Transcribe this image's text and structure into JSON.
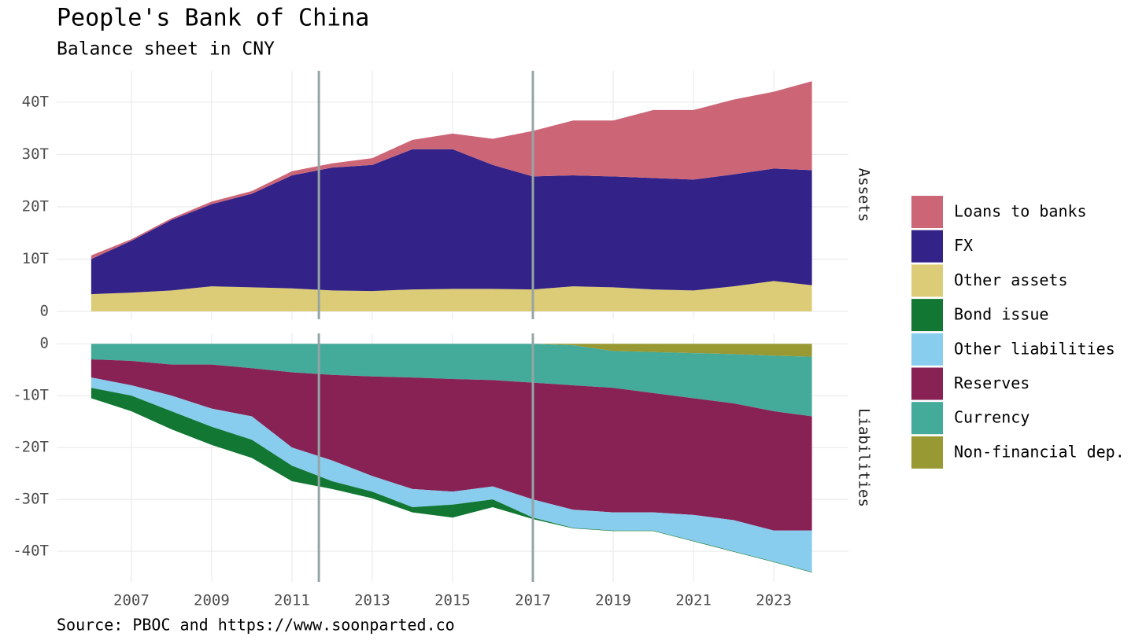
{
  "title": "People's Bank of China",
  "subtitle": "Balance sheet in CNY",
  "source": "Source: PBOC and https://www.soonparted.co",
  "chart_data": [
    {
      "type": "area",
      "facet": "Assets",
      "stacked": true,
      "x": [
        2006,
        2007,
        2008,
        2009,
        2010,
        2011,
        2012,
        2013,
        2014,
        2015,
        2016,
        2017,
        2018,
        2019,
        2020,
        2021,
        2022,
        2023,
        2023.95
      ],
      "xlim": [
        2005.14,
        2024.86
      ],
      "xticks": [
        2007,
        2009,
        2011,
        2013,
        2015,
        2017,
        2019,
        2021,
        2023
      ],
      "ylim": [
        -1.5,
        46
      ],
      "yticks": [
        {
          "value": 0,
          "label": "0"
        },
        {
          "value": 10,
          "label": "10T"
        },
        {
          "value": 20,
          "label": "20T"
        },
        {
          "value": 30,
          "label": "30T"
        },
        {
          "value": 40,
          "label": "40T"
        }
      ],
      "vlines": [
        2011.67,
        2017.0
      ],
      "grid": true,
      "series": [
        {
          "name": "Loans to banks",
          "color": "#CC6677",
          "values": [
            0.7,
            0.3,
            0.3,
            0.5,
            0.5,
            0.8,
            0.8,
            1.3,
            1.8,
            3.0,
            5.0,
            8.7,
            10.5,
            10.7,
            13.0,
            13.3,
            14.3,
            14.7,
            17.0
          ]
        },
        {
          "name": "FX",
          "color": "#332288",
          "values": [
            6.7,
            9.9,
            13.5,
            15.7,
            17.9,
            21.6,
            23.5,
            24.1,
            26.8,
            26.7,
            23.7,
            21.6,
            21.2,
            21.2,
            21.3,
            21.2,
            21.4,
            21.5,
            22.0
          ]
        },
        {
          "name": "Other assets",
          "color": "#DDCC77",
          "values": [
            3.3,
            3.6,
            4.0,
            4.8,
            4.6,
            4.4,
            4.0,
            3.9,
            4.2,
            4.3,
            4.3,
            4.2,
            4.8,
            4.6,
            4.2,
            4.0,
            4.8,
            5.8,
            5.0
          ]
        }
      ]
    },
    {
      "type": "area",
      "facet": "Liabilities",
      "stacked": true,
      "x": [
        2006,
        2007,
        2008,
        2009,
        2010,
        2011,
        2012,
        2013,
        2014,
        2015,
        2016,
        2017,
        2018,
        2019,
        2020,
        2021,
        2022,
        2023,
        2023.95
      ],
      "xlim": [
        2005.14,
        2024.86
      ],
      "xticks": [
        2007,
        2009,
        2011,
        2013,
        2015,
        2017,
        2019,
        2021,
        2023
      ],
      "ylim": [
        -45.9,
        2
      ],
      "yticks": [
        {
          "value": 0,
          "label": "0"
        },
        {
          "value": -10,
          "label": "-10T"
        },
        {
          "value": -20,
          "label": "-20T"
        },
        {
          "value": -30,
          "label": "-30T"
        },
        {
          "value": -40,
          "label": "-40T"
        }
      ],
      "vlines": [
        2011.67,
        2017.0
      ],
      "grid": true,
      "series": [
        {
          "name": "Bond issue",
          "color": "#117733",
          "values": [
            -2,
            -3,
            -3.5,
            -3.5,
            -3.5,
            -3,
            -1.5,
            -1.3,
            -1,
            -2.5,
            -1.5,
            -0.3,
            -0.1,
            -0.1,
            -0.1,
            -0.1,
            -0.1,
            -0.1,
            -0.1
          ]
        },
        {
          "name": "Other liabilities",
          "color": "#88CCEE",
          "values": [
            -2,
            -2,
            -3,
            -3.5,
            -4.5,
            -3.5,
            -4,
            -3,
            -3.5,
            -2.5,
            -2.5,
            -3.5,
            -3.5,
            -3.5,
            -3.5,
            -5,
            -6,
            -6,
            -8
          ]
        },
        {
          "name": "Reserves",
          "color": "#882255",
          "values": [
            -3.5,
            -4.7,
            -6,
            -8.5,
            -9.3,
            -14.5,
            -16.5,
            -19.2,
            -21.5,
            -21.7,
            -20.5,
            -22.5,
            -24,
            -24,
            -23,
            -22.5,
            -22.5,
            -23,
            -22
          ]
        },
        {
          "name": "Currency",
          "color": "#44AA99",
          "values": [
            -3,
            -3.3,
            -4,
            -4,
            -4.7,
            -5.5,
            -6,
            -6.3,
            -6.5,
            -6.8,
            -7,
            -7.5,
            -7.7,
            -7.1,
            -7.9,
            -8.7,
            -9.5,
            -10.7,
            -11.5
          ]
        },
        {
          "name": "Non-financial dep.",
          "color": "#999933",
          "values": [
            0,
            0,
            0,
            0,
            0,
            0,
            0,
            0,
            0,
            0,
            0,
            0,
            -0.3,
            -1.4,
            -1.6,
            -1.8,
            -2.0,
            -2.3,
            -2.5
          ]
        }
      ]
    }
  ]
}
